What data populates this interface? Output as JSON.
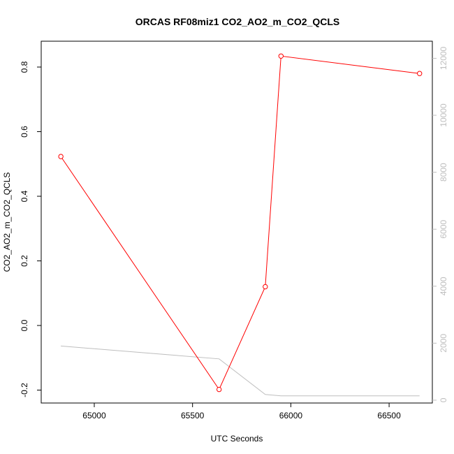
{
  "chart_data": {
    "type": "line",
    "title": "ORCAS RF08miz1 CO2_AO2_m_CO2_QCLS",
    "xlabel": "UTC Seconds",
    "ylabel": "CO2_AO2_m_CO2_QCLS",
    "xlim": [
      64730,
      66720
    ],
    "ylim": [
      -0.24,
      0.88
    ],
    "y2lim": [
      -100,
      12600
    ],
    "x_ticks": [
      65000,
      65500,
      66000,
      66500
    ],
    "y_ticks": [
      -0.2,
      0.0,
      0.2,
      0.4,
      0.6,
      0.8
    ],
    "y2_ticks": [
      0,
      2000,
      4000,
      6000,
      8000,
      10000,
      12000
    ],
    "grid": false,
    "series": [
      {
        "axis": "left",
        "color": "#ff0000",
        "markers": "open-circle",
        "x": [
          64830,
          65635,
          65870,
          65950,
          66655
        ],
        "y": [
          0.523,
          -0.198,
          0.12,
          0.834,
          0.78
        ]
      },
      {
        "axis": "right",
        "color": "#bebebe",
        "markers": "none",
        "x": [
          64830,
          65635,
          65870,
          65950,
          66655
        ],
        "y": [
          1900,
          1450,
          200,
          150,
          150
        ]
      }
    ]
  }
}
